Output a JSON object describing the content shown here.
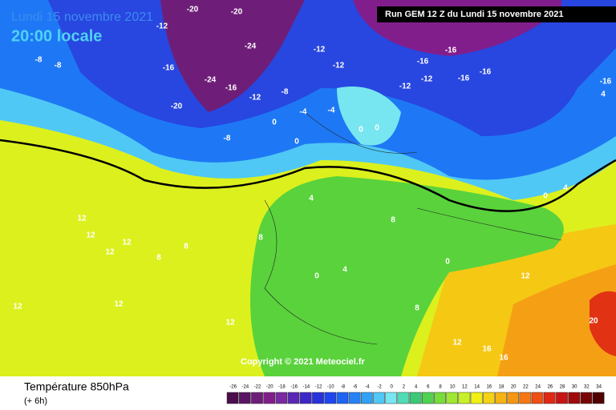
{
  "header": {
    "date": "Lundi 15 novembre 2021",
    "time": "20:00 locale",
    "run": "Run GEM 12 Z du Lundi 15 novembre 2021"
  },
  "copyright": "Copyright © 2021 Meteociel.fr",
  "footer": {
    "title": "Température 850hPa",
    "step": "(+ 6h)"
  },
  "legend": {
    "labels": [
      -26,
      -24,
      -22,
      -20,
      -18,
      -16,
      -14,
      -12,
      -10,
      -8,
      -6,
      -4,
      -2,
      0,
      2,
      4,
      6,
      8,
      10,
      12,
      14,
      16,
      18,
      20,
      22,
      24,
      26,
      28,
      30,
      32,
      34
    ],
    "colors": [
      "#4b0d4b",
      "#5a1464",
      "#6e1e78",
      "#821e8c",
      "#7a2aa0",
      "#5a28b4",
      "#3c28c8",
      "#2832dc",
      "#1e46f0",
      "#1e64f5",
      "#2882f5",
      "#32a0f5",
      "#50c8f5",
      "#78e6f0",
      "#50dcb4",
      "#3cc878",
      "#50d250",
      "#78dc3c",
      "#a0e632",
      "#c8f028",
      "#f0f014",
      "#f5d214",
      "#f5b414",
      "#f59614",
      "#f57814",
      "#f05014",
      "#e12814",
      "#c81414",
      "#a00a0a",
      "#780505",
      "#500000"
    ]
  },
  "map_labels": [
    -20,
    -16,
    -24,
    -20,
    -16,
    -12,
    -8,
    -12,
    -12,
    -16,
    -16,
    -12,
    -12,
    -16,
    -16,
    -8,
    -8,
    -8,
    -4,
    -4,
    0,
    0,
    0,
    0,
    0,
    4,
    4,
    4,
    8,
    8,
    8,
    12,
    12,
    12,
    12,
    12,
    12,
    12,
    12,
    16,
    16,
    20,
    8,
    4,
    0,
    0,
    -16,
    12,
    8,
    -20,
    -24,
    -12
  ]
}
